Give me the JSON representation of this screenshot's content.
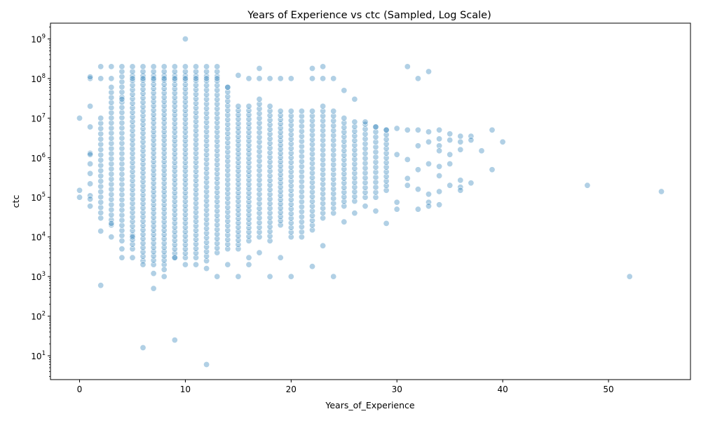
{
  "chart_data": {
    "type": "scatter",
    "title": "Years of Experience vs ctc (Sampled, Log Scale)",
    "xlabel": "Years_of_Experience",
    "ylabel": "ctc",
    "x_scale": "linear",
    "y_scale": "log",
    "xlim": [
      -2.75,
      57.75
    ],
    "ylim": [
      2.5,
      2500000000
    ],
    "x_ticks": [
      0,
      10,
      20,
      30,
      40,
      50
    ],
    "x_tick_labels": [
      "0",
      "10",
      "20",
      "30",
      "40",
      "50"
    ],
    "y_ticks": [
      10,
      100,
      1000,
      10000,
      100000,
      1000000,
      10000000,
      100000000,
      1000000000
    ],
    "y_tick_labels": [
      {
        "base": "10",
        "exp": "1"
      },
      {
        "base": "10",
        "exp": "2"
      },
      {
        "base": "10",
        "exp": "3"
      },
      {
        "base": "10",
        "exp": "4"
      },
      {
        "base": "10",
        "exp": "5"
      },
      {
        "base": "10",
        "exp": "6"
      },
      {
        "base": "10",
        "exp": "7"
      },
      {
        "base": "10",
        "exp": "8"
      },
      {
        "base": "10",
        "exp": "9"
      }
    ],
    "grid": false,
    "legend": "none",
    "marker_color": "#1f77b4",
    "marker_alpha": 0.35,
    "marker_edge_color": "#ffffff",
    "points": [
      {
        "x": 0,
        "y": 10000000
      },
      {
        "x": 0,
        "y": 150000
      },
      {
        "x": 0,
        "y": 100000
      },
      {
        "x": 1,
        "y": 100000000
      },
      {
        "x": 1,
        "y": 110000000
      },
      {
        "x": 1,
        "y": 20000000
      },
      {
        "x": 1,
        "y": 6000000
      },
      {
        "x": 1,
        "y": 1300000
      },
      {
        "x": 1,
        "y": 1200000
      },
      {
        "x": 1,
        "y": 700000
      },
      {
        "x": 1,
        "y": 400000
      },
      {
        "x": 1,
        "y": 220000
      },
      {
        "x": 1,
        "y": 110000
      },
      {
        "x": 1,
        "y": 90000
      },
      {
        "x": 1,
        "y": 60000
      },
      {
        "x": 2,
        "y": 200000000
      },
      {
        "x": 2,
        "y": 100000000
      },
      {
        "x": 2,
        "y": 14000
      },
      {
        "x": 2,
        "y": 600
      },
      {
        "x": 3,
        "y": 200000000
      },
      {
        "x": 3,
        "y": 100000000
      },
      {
        "x": 3,
        "y": 10000
      },
      {
        "x": 3,
        "y": 22000
      },
      {
        "x": 4,
        "y": 200000000
      },
      {
        "x": 4,
        "y": 30000000
      },
      {
        "x": 4,
        "y": 5000
      },
      {
        "x": 4,
        "y": 3000
      },
      {
        "x": 5,
        "y": 200000000
      },
      {
        "x": 5,
        "y": 100000000
      },
      {
        "x": 5,
        "y": 10000
      },
      {
        "x": 5,
        "y": 3000
      },
      {
        "x": 6,
        "y": 200000000
      },
      {
        "x": 6,
        "y": 100000000
      },
      {
        "x": 6,
        "y": 16
      },
      {
        "x": 6,
        "y": 2000
      },
      {
        "x": 7,
        "y": 200000000
      },
      {
        "x": 7,
        "y": 100000000
      },
      {
        "x": 7,
        "y": 500
      },
      {
        "x": 7,
        "y": 1200
      },
      {
        "x": 8,
        "y": 200000000
      },
      {
        "x": 8,
        "y": 100000000
      },
      {
        "x": 8,
        "y": 1000
      },
      {
        "x": 8,
        "y": 1500
      },
      {
        "x": 9,
        "y": 200000000
      },
      {
        "x": 9,
        "y": 100000000
      },
      {
        "x": 9,
        "y": 25
      },
      {
        "x": 9,
        "y": 3000
      },
      {
        "x": 10,
        "y": 1000000000
      },
      {
        "x": 10,
        "y": 200000000
      },
      {
        "x": 10,
        "y": 100000000
      },
      {
        "x": 10,
        "y": 2000
      },
      {
        "x": 11,
        "y": 200000000
      },
      {
        "x": 11,
        "y": 100000000
      },
      {
        "x": 11,
        "y": 2000
      },
      {
        "x": 12,
        "y": 200000000
      },
      {
        "x": 12,
        "y": 100000000
      },
      {
        "x": 12,
        "y": 6
      },
      {
        "x": 12,
        "y": 1600
      },
      {
        "x": 13,
        "y": 200000000
      },
      {
        "x": 13,
        "y": 100000000
      },
      {
        "x": 13,
        "y": 1000
      },
      {
        "x": 14,
        "y": 60000000
      },
      {
        "x": 14,
        "y": 2000
      },
      {
        "x": 15,
        "y": 120000000
      },
      {
        "x": 15,
        "y": 1000
      },
      {
        "x": 16,
        "y": 100000000
      },
      {
        "x": 16,
        "y": 3000
      },
      {
        "x": 16,
        "y": 2000
      },
      {
        "x": 17,
        "y": 180000000
      },
      {
        "x": 17,
        "y": 100000000
      },
      {
        "x": 17,
        "y": 4000
      },
      {
        "x": 18,
        "y": 100000000
      },
      {
        "x": 18,
        "y": 1000
      },
      {
        "x": 19,
        "y": 100000000
      },
      {
        "x": 19,
        "y": 3000
      },
      {
        "x": 20,
        "y": 100000000
      },
      {
        "x": 20,
        "y": 1000
      },
      {
        "x": 22,
        "y": 180000000
      },
      {
        "x": 22,
        "y": 100000000
      },
      {
        "x": 22,
        "y": 1800
      },
      {
        "x": 23,
        "y": 200000000
      },
      {
        "x": 23,
        "y": 100000000
      },
      {
        "x": 23,
        "y": 6000
      },
      {
        "x": 24,
        "y": 100000000
      },
      {
        "x": 24,
        "y": 1000
      },
      {
        "x": 25,
        "y": 50000000
      },
      {
        "x": 25,
        "y": 24000
      },
      {
        "x": 26,
        "y": 30000000
      },
      {
        "x": 26,
        "y": 40000
      },
      {
        "x": 27,
        "y": 8000000
      },
      {
        "x": 27,
        "y": 60000
      },
      {
        "x": 28,
        "y": 6000000
      },
      {
        "x": 28,
        "y": 45000
      },
      {
        "x": 29,
        "y": 5000000
      },
      {
        "x": 29,
        "y": 22000
      },
      {
        "x": 30,
        "y": 5500000
      },
      {
        "x": 30,
        "y": 1200000
      },
      {
        "x": 30,
        "y": 75000
      },
      {
        "x": 30,
        "y": 50000
      },
      {
        "x": 31,
        "y": 200000000
      },
      {
        "x": 31,
        "y": 5000000
      },
      {
        "x": 31,
        "y": 900000
      },
      {
        "x": 31,
        "y": 300000
      },
      {
        "x": 31,
        "y": 200000
      },
      {
        "x": 32,
        "y": 100000000
      },
      {
        "x": 32,
        "y": 5000000
      },
      {
        "x": 32,
        "y": 2000000
      },
      {
        "x": 32,
        "y": 500000
      },
      {
        "x": 32,
        "y": 160000
      },
      {
        "x": 32,
        "y": 50000
      },
      {
        "x": 33,
        "y": 150000000
      },
      {
        "x": 33,
        "y": 4500000
      },
      {
        "x": 33,
        "y": 2500000
      },
      {
        "x": 33,
        "y": 700000
      },
      {
        "x": 33,
        "y": 120000
      },
      {
        "x": 33,
        "y": 75000
      },
      {
        "x": 33,
        "y": 60000
      },
      {
        "x": 34,
        "y": 5000000
      },
      {
        "x": 34,
        "y": 3000000
      },
      {
        "x": 34,
        "y": 2000000
      },
      {
        "x": 34,
        "y": 1500000
      },
      {
        "x": 34,
        "y": 600000
      },
      {
        "x": 34,
        "y": 350000
      },
      {
        "x": 34,
        "y": 140000
      },
      {
        "x": 34,
        "y": 65000
      },
      {
        "x": 35,
        "y": 4000000
      },
      {
        "x": 35,
        "y": 2800000
      },
      {
        "x": 35,
        "y": 1200000
      },
      {
        "x": 35,
        "y": 700000
      },
      {
        "x": 35,
        "y": 200000
      },
      {
        "x": 36,
        "y": 3500000
      },
      {
        "x": 36,
        "y": 2500000
      },
      {
        "x": 36,
        "y": 1600000
      },
      {
        "x": 36,
        "y": 270000
      },
      {
        "x": 36,
        "y": 180000
      },
      {
        "x": 36,
        "y": 150000
      },
      {
        "x": 37,
        "y": 3500000
      },
      {
        "x": 37,
        "y": 2800000
      },
      {
        "x": 37,
        "y": 230000
      },
      {
        "x": 38,
        "y": 1500000
      },
      {
        "x": 39,
        "y": 5000000
      },
      {
        "x": 39,
        "y": 500000
      },
      {
        "x": 40,
        "y": 2500000
      },
      {
        "x": 48,
        "y": 200000
      },
      {
        "x": 52,
        "y": 1000
      },
      {
        "x": 55,
        "y": 140000
      }
    ],
    "dense_bands": [
      {
        "x": 2,
        "from": 30000,
        "to": 10000000,
        "count": 20
      },
      {
        "x": 3,
        "from": 20000,
        "to": 60000000,
        "count": 28
      },
      {
        "x": 4,
        "from": 8000,
        "to": 150000000,
        "count": 34
      },
      {
        "x": 5,
        "from": 5000,
        "to": 150000000,
        "count": 40
      },
      {
        "x": 6,
        "from": 2500,
        "to": 150000000,
        "count": 44
      },
      {
        "x": 7,
        "from": 2000,
        "to": 150000000,
        "count": 46
      },
      {
        "x": 8,
        "from": 2000,
        "to": 150000000,
        "count": 46
      },
      {
        "x": 9,
        "from": 3000,
        "to": 150000000,
        "count": 44
      },
      {
        "x": 10,
        "from": 3000,
        "to": 150000000,
        "count": 44
      },
      {
        "x": 11,
        "from": 3000,
        "to": 150000000,
        "count": 42
      },
      {
        "x": 12,
        "from": 2500,
        "to": 150000000,
        "count": 42
      },
      {
        "x": 13,
        "from": 4000,
        "to": 150000000,
        "count": 40
      },
      {
        "x": 14,
        "from": 5000,
        "to": 60000000,
        "count": 36
      },
      {
        "x": 15,
        "from": 5000,
        "to": 20000000,
        "count": 34
      },
      {
        "x": 16,
        "from": 8000,
        "to": 20000000,
        "count": 32
      },
      {
        "x": 17,
        "from": 10000,
        "to": 30000000,
        "count": 30
      },
      {
        "x": 18,
        "from": 8000,
        "to": 20000000,
        "count": 30
      },
      {
        "x": 19,
        "from": 20000,
        "to": 15000000,
        "count": 28
      },
      {
        "x": 20,
        "from": 10000,
        "to": 15000000,
        "count": 28
      },
      {
        "x": 21,
        "from": 10000,
        "to": 15000000,
        "count": 26
      },
      {
        "x": 22,
        "from": 15000,
        "to": 15000000,
        "count": 26
      },
      {
        "x": 23,
        "from": 30000,
        "to": 20000000,
        "count": 24
      },
      {
        "x": 24,
        "from": 40000,
        "to": 15000000,
        "count": 22
      },
      {
        "x": 25,
        "from": 60000,
        "to": 10000000,
        "count": 20
      },
      {
        "x": 26,
        "from": 80000,
        "to": 8000000,
        "count": 18
      },
      {
        "x": 27,
        "from": 100000,
        "to": 7000000,
        "count": 16
      },
      {
        "x": 28,
        "from": 100000,
        "to": 6000000,
        "count": 15
      },
      {
        "x": 29,
        "from": 150000,
        "to": 5000000,
        "count": 14
      }
    ]
  }
}
